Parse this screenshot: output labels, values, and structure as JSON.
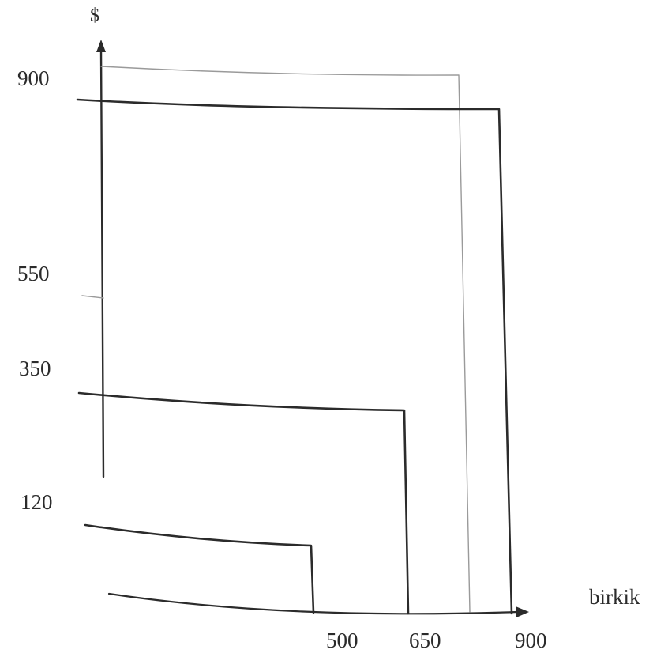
{
  "axis_labels": {
    "y": "$",
    "x": "birkik"
  },
  "y_ticks": [
    "900",
    "550",
    "350",
    "120"
  ],
  "x_ticks": [
    "500",
    "650",
    "900"
  ],
  "step_levels": [
    {
      "x": 500,
      "y": 120
    },
    {
      "x": 650,
      "y": 350
    },
    {
      "x": 900,
      "y": 900
    }
  ],
  "colors": {
    "ink": "#2b2b2b",
    "guide": "#9a9a9a"
  }
}
